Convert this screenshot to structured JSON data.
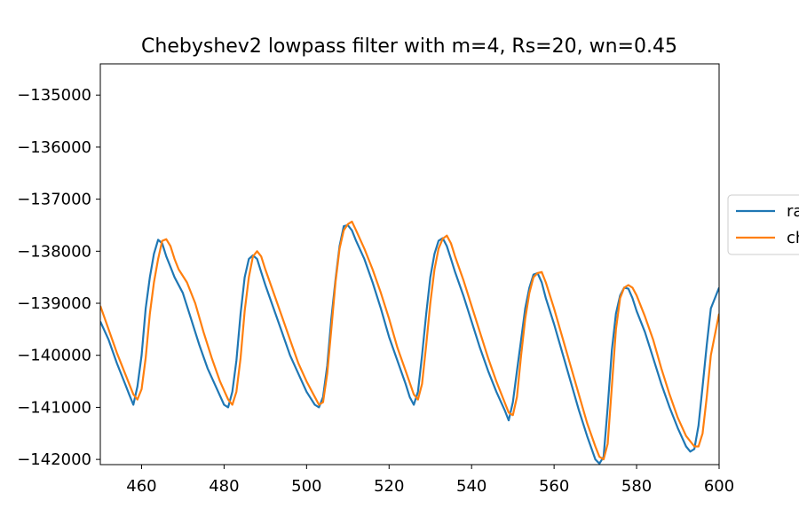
{
  "chart_data": {
    "type": "line",
    "title": "Chebyshev2 lowpass filter with m=4, Rs=20, wn=0.45",
    "xlabel": "",
    "ylabel": "",
    "xlim": [
      450,
      600
    ],
    "ylim": [
      -142100,
      -134400
    ],
    "x_ticks": [
      460,
      480,
      500,
      520,
      540,
      560,
      580,
      600
    ],
    "y_ticks": [
      -135000,
      -136000,
      -137000,
      -138000,
      -139000,
      -140000,
      -141000,
      -142000
    ],
    "x_tick_labels": [
      "460",
      "480",
      "500",
      "520",
      "540",
      "560",
      "580",
      "600"
    ],
    "y_tick_labels": [
      "−135000",
      "−136000",
      "−137000",
      "−138000",
      "−139000",
      "−140000",
      "−141000",
      "−142000"
    ],
    "grid": false,
    "legend_position": "right, outside plot (partially cut off)",
    "series": [
      {
        "name": "ra",
        "color": "#1f77b4",
        "points": [
          [
            450,
            -139350
          ],
          [
            452,
            -139700
          ],
          [
            454,
            -140150
          ],
          [
            456,
            -140550
          ],
          [
            457,
            -140750
          ],
          [
            458,
            -140950
          ],
          [
            459,
            -140600
          ],
          [
            460,
            -140000
          ],
          [
            461,
            -139100
          ],
          [
            462,
            -138500
          ],
          [
            463,
            -138050
          ],
          [
            464,
            -137780
          ],
          [
            465,
            -137850
          ],
          [
            466,
            -138100
          ],
          [
            467,
            -138300
          ],
          [
            468,
            -138500
          ],
          [
            470,
            -138800
          ],
          [
            472,
            -139300
          ],
          [
            474,
            -139800
          ],
          [
            476,
            -140250
          ],
          [
            478,
            -140600
          ],
          [
            480,
            -140950
          ],
          [
            481,
            -141000
          ],
          [
            482,
            -140700
          ],
          [
            483,
            -140100
          ],
          [
            484,
            -139200
          ],
          [
            485,
            -138500
          ],
          [
            486,
            -138150
          ],
          [
            487,
            -138080
          ],
          [
            488,
            -138150
          ],
          [
            489,
            -138400
          ],
          [
            490,
            -138650
          ],
          [
            492,
            -139100
          ],
          [
            494,
            -139550
          ],
          [
            496,
            -140000
          ],
          [
            498,
            -140350
          ],
          [
            500,
            -140700
          ],
          [
            502,
            -140950
          ],
          [
            503,
            -141000
          ],
          [
            504,
            -140800
          ],
          [
            505,
            -140200
          ],
          [
            506,
            -139300
          ],
          [
            507,
            -138550
          ],
          [
            508,
            -137900
          ],
          [
            509,
            -137520
          ],
          [
            510,
            -137500
          ],
          [
            511,
            -137600
          ],
          [
            512,
            -137800
          ],
          [
            514,
            -138150
          ],
          [
            516,
            -138600
          ],
          [
            518,
            -139100
          ],
          [
            520,
            -139650
          ],
          [
            522,
            -140100
          ],
          [
            524,
            -140550
          ],
          [
            525,
            -140800
          ],
          [
            526,
            -140950
          ],
          [
            527,
            -140700
          ],
          [
            528,
            -140000
          ],
          [
            529,
            -139200
          ],
          [
            530,
            -138500
          ],
          [
            531,
            -138050
          ],
          [
            532,
            -137800
          ],
          [
            533,
            -137750
          ],
          [
            534,
            -137900
          ],
          [
            535,
            -138150
          ],
          [
            536,
            -138400
          ],
          [
            538,
            -138850
          ],
          [
            540,
            -139350
          ],
          [
            542,
            -139850
          ],
          [
            544,
            -140300
          ],
          [
            546,
            -140700
          ],
          [
            548,
            -141050
          ],
          [
            549,
            -141250
          ],
          [
            550,
            -140900
          ],
          [
            551,
            -140300
          ],
          [
            552,
            -139700
          ],
          [
            553,
            -139100
          ],
          [
            554,
            -138700
          ],
          [
            555,
            -138450
          ],
          [
            556,
            -138420
          ],
          [
            557,
            -138600
          ],
          [
            558,
            -138900
          ],
          [
            560,
            -139400
          ],
          [
            562,
            -139950
          ],
          [
            564,
            -140500
          ],
          [
            566,
            -141050
          ],
          [
            568,
            -141550
          ],
          [
            570,
            -142000
          ],
          [
            571,
            -142080
          ],
          [
            572,
            -141950
          ],
          [
            573,
            -141000
          ],
          [
            574,
            -139900
          ],
          [
            575,
            -139200
          ],
          [
            576,
            -138850
          ],
          [
            577,
            -138700
          ],
          [
            578,
            -138720
          ],
          [
            579,
            -138900
          ],
          [
            580,
            -139150
          ],
          [
            582,
            -139550
          ],
          [
            584,
            -140050
          ],
          [
            586,
            -140550
          ],
          [
            588,
            -141000
          ],
          [
            590,
            -141400
          ],
          [
            592,
            -141750
          ],
          [
            593,
            -141850
          ],
          [
            594,
            -141800
          ],
          [
            595,
            -141350
          ],
          [
            596,
            -140600
          ],
          [
            597,
            -139800
          ],
          [
            598,
            -139100
          ],
          [
            600,
            -138700
          ]
        ]
      },
      {
        "name": "ch",
        "color": "#ff7f0e",
        "points": [
          [
            450,
            -139050
          ],
          [
            452,
            -139500
          ],
          [
            454,
            -139950
          ],
          [
            456,
            -140350
          ],
          [
            458,
            -140750
          ],
          [
            459,
            -140850
          ],
          [
            460,
            -140650
          ],
          [
            461,
            -140050
          ],
          [
            462,
            -139200
          ],
          [
            463,
            -138600
          ],
          [
            464,
            -138150
          ],
          [
            465,
            -137800
          ],
          [
            466,
            -137770
          ],
          [
            467,
            -137900
          ],
          [
            468,
            -138150
          ],
          [
            469,
            -138350
          ],
          [
            471,
            -138600
          ],
          [
            473,
            -139000
          ],
          [
            475,
            -139550
          ],
          [
            477,
            -140050
          ],
          [
            479,
            -140500
          ],
          [
            481,
            -140850
          ],
          [
            482,
            -140950
          ],
          [
            483,
            -140700
          ],
          [
            484,
            -140050
          ],
          [
            485,
            -139150
          ],
          [
            486,
            -138500
          ],
          [
            487,
            -138100
          ],
          [
            488,
            -138000
          ],
          [
            489,
            -138100
          ],
          [
            490,
            -138350
          ],
          [
            492,
            -138800
          ],
          [
            494,
            -139250
          ],
          [
            496,
            -139700
          ],
          [
            498,
            -140150
          ],
          [
            500,
            -140500
          ],
          [
            502,
            -140800
          ],
          [
            503,
            -140950
          ],
          [
            504,
            -140900
          ],
          [
            505,
            -140350
          ],
          [
            506,
            -139500
          ],
          [
            507,
            -138600
          ],
          [
            508,
            -137950
          ],
          [
            509,
            -137600
          ],
          [
            510,
            -137480
          ],
          [
            511,
            -137430
          ],
          [
            512,
            -137600
          ],
          [
            514,
            -137950
          ],
          [
            516,
            -138350
          ],
          [
            518,
            -138800
          ],
          [
            520,
            -139300
          ],
          [
            522,
            -139850
          ],
          [
            524,
            -140300
          ],
          [
            526,
            -140750
          ],
          [
            527,
            -140850
          ],
          [
            528,
            -140550
          ],
          [
            529,
            -139800
          ],
          [
            530,
            -139000
          ],
          [
            531,
            -138350
          ],
          [
            532,
            -137950
          ],
          [
            533,
            -137760
          ],
          [
            534,
            -137700
          ],
          [
            535,
            -137850
          ],
          [
            536,
            -138100
          ],
          [
            538,
            -138550
          ],
          [
            540,
            -139050
          ],
          [
            542,
            -139550
          ],
          [
            544,
            -140050
          ],
          [
            546,
            -140500
          ],
          [
            548,
            -140900
          ],
          [
            549,
            -141100
          ],
          [
            550,
            -141150
          ],
          [
            551,
            -140800
          ],
          [
            552,
            -140000
          ],
          [
            553,
            -139300
          ],
          [
            554,
            -138800
          ],
          [
            555,
            -138500
          ],
          [
            556,
            -138420
          ],
          [
            557,
            -138400
          ],
          [
            558,
            -138600
          ],
          [
            560,
            -139100
          ],
          [
            562,
            -139650
          ],
          [
            564,
            -140200
          ],
          [
            566,
            -140750
          ],
          [
            568,
            -141300
          ],
          [
            570,
            -141750
          ],
          [
            571,
            -141950
          ],
          [
            572,
            -142000
          ],
          [
            573,
            -141700
          ],
          [
            574,
            -140600
          ],
          [
            575,
            -139500
          ],
          [
            576,
            -138900
          ],
          [
            577,
            -138700
          ],
          [
            578,
            -138650
          ],
          [
            579,
            -138700
          ],
          [
            580,
            -138850
          ],
          [
            582,
            -139250
          ],
          [
            584,
            -139700
          ],
          [
            586,
            -140250
          ],
          [
            588,
            -140750
          ],
          [
            590,
            -141200
          ],
          [
            592,
            -141550
          ],
          [
            594,
            -141750
          ],
          [
            595,
            -141750
          ],
          [
            596,
            -141500
          ],
          [
            597,
            -140800
          ],
          [
            598,
            -140000
          ],
          [
            600,
            -139200
          ]
        ]
      }
    ]
  }
}
